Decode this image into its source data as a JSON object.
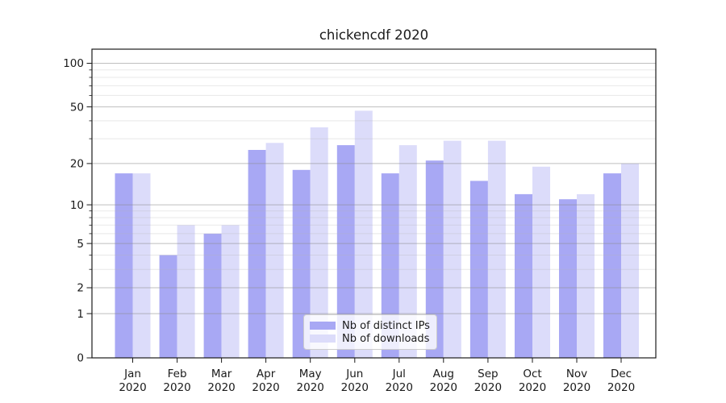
{
  "title": "chickencdf 2020",
  "chart_data": {
    "type": "bar",
    "title": "chickencdf 2020",
    "categories": [
      "Jan",
      "Feb",
      "Mar",
      "Apr",
      "May",
      "Jun",
      "Jul",
      "Aug",
      "Sep",
      "Oct",
      "Nov",
      "Dec"
    ],
    "x_tick_year": "2020",
    "series": [
      {
        "name": "Nb of distinct IPs",
        "color": "#a8a8f4",
        "values": [
          17,
          4,
          6,
          25,
          18,
          27,
          17,
          21,
          15,
          12,
          11,
          17
        ]
      },
      {
        "name": "Nb of downloads",
        "color": "#dcdcfa",
        "values": [
          17,
          7,
          7,
          28,
          36,
          47,
          27,
          29,
          29,
          19,
          12,
          20
        ]
      }
    ],
    "yscale": "log1p",
    "ylim": [
      0,
      125
    ],
    "y_major_ticks": [
      0,
      1,
      2,
      5,
      10,
      20,
      50,
      100
    ],
    "y_minor_ticks": [
      3,
      4,
      6,
      7,
      8,
      9,
      30,
      40,
      60,
      70,
      80,
      90
    ],
    "grid": true,
    "legend_position": "lower-center"
  },
  "colors": {
    "bar_ips": "#a8a8f4",
    "bar_downloads": "#dcdcfa",
    "grid_major": "#8a8a8a",
    "grid_minor": "#b3b3b3",
    "axis": "#1a1a1a",
    "text": "#1a1a1a",
    "legend_border": "#cccccc",
    "legend_bg": "rgba(255,255,255,0.8)"
  }
}
